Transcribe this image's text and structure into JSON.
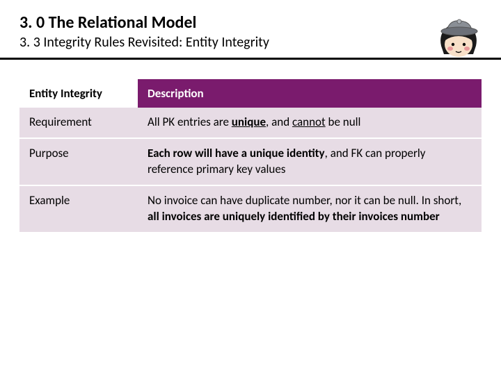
{
  "header": {
    "title": "3. 0 The Relational Model",
    "subtitle": "3. 3 Integrity Rules Revisited: Entity Integrity"
  },
  "table": {
    "header_col1": "Entity Integrity",
    "header_col2": "Description",
    "rows": [
      {
        "label": "Requirement",
        "desc_parts": [
          "All PK entries are ",
          "unique",
          ", and ",
          "cannot",
          " be null"
        ],
        "desc_styles": [
          "",
          "bu",
          "",
          "u",
          ""
        ]
      },
      {
        "label": "Purpose",
        "desc_parts": [
          "Each row will have a unique identity",
          ", and FK can properly reference primary key values"
        ],
        "desc_styles": [
          "b",
          ""
        ]
      },
      {
        "label": "Example",
        "desc_parts": [
          "No invoice can have duplicate number, nor it can be null. In short, ",
          "all invoices are uniquely identified by their invoices number"
        ],
        "desc_styles": [
          "",
          "b"
        ]
      }
    ],
    "colors": {
      "header_bg": "#7a1b6d",
      "header_fg": "#ffffff",
      "row_bg": "#e7dce5",
      "row_fg": "#000000"
    }
  },
  "avatar": {
    "hat_color": "#8a8f96",
    "hat_brim": "#6c7078",
    "face_color": "#f7e0c8",
    "hair_color": "#1a1a1a",
    "cheek_color": "#e89a9a"
  }
}
